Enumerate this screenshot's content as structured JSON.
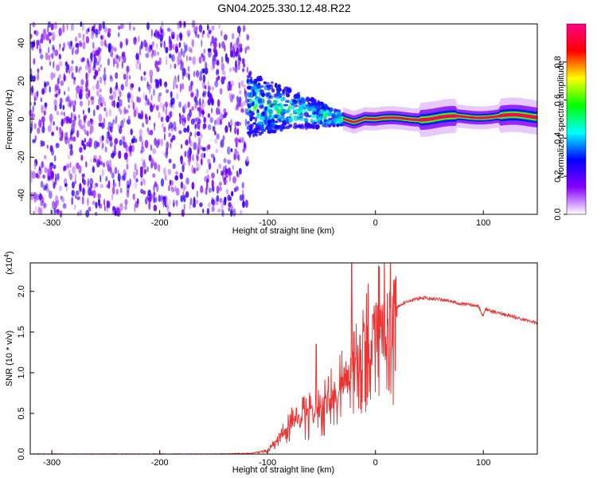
{
  "title": "GN04.2025.330.12.48.R22",
  "chart_data": [
    {
      "type": "heatmap",
      "xlabel": "Height of straight line (km)",
      "ylabel": "Frequency (Hz)",
      "xlim": [
        -320,
        150
      ],
      "ylim": [
        -50,
        50
      ],
      "xticks": [
        "-300",
        "-200",
        "-100",
        "0",
        "100"
      ],
      "xtick_values": [
        -300,
        -200,
        -100,
        0,
        100
      ],
      "yticks": [
        "-40",
        "-20",
        "0",
        "20",
        "40"
      ],
      "ytick_values": [
        -40,
        -20,
        0,
        20,
        40
      ],
      "colorbar": {
        "label": "Normalized spectral amplitude",
        "range": [
          0,
          1
        ],
        "ticks": [
          "0.0",
          "0.2",
          "0.4",
          "0.6",
          "0.8"
        ],
        "tick_values": [
          0,
          0.2,
          0.4,
          0.6,
          0.8
        ],
        "colors": [
          "#ffffff",
          "#8800ff",
          "#0000ff",
          "#00ffff",
          "#00ff00",
          "#ffff00",
          "#ff0000",
          "#ff0088"
        ]
      },
      "regions": [
        {
          "x_range": [
            -320,
            -118
          ],
          "freq_range": [
            -50,
            50
          ],
          "amplitude": 0.15,
          "pattern": "noise"
        },
        {
          "x_range": [
            -118,
            -30
          ],
          "freq_range": [
            -12,
            14
          ],
          "amplitude": 0.35,
          "pattern": "scattered"
        },
        {
          "x_range": [
            -30,
            150
          ],
          "freq_range": [
            -1,
            2
          ],
          "amplitude": 0.9,
          "pattern": "line"
        }
      ],
      "center_line": [
        {
          "x": -118,
          "f": 8
        },
        {
          "x": -100,
          "f": 6
        },
        {
          "x": -80,
          "f": 5
        },
        {
          "x": -60,
          "f": 3
        },
        {
          "x": -40,
          "f": 1
        },
        {
          "x": -20,
          "f": -1
        },
        {
          "x": -10,
          "f": 1
        },
        {
          "x": 0,
          "f": 0
        },
        {
          "x": 20,
          "f": 0
        },
        {
          "x": 50,
          "f": 0.5
        },
        {
          "x": 80,
          "f": 1
        },
        {
          "x": 100,
          "f": 1.5
        },
        {
          "x": 150,
          "f": 1.5
        }
      ]
    },
    {
      "type": "line",
      "xlabel": "Height of straight line (km)",
      "ylabel": "SNR (10 * v/v)",
      "y_multiplier": "(x10",
      "y_multiplier_exp": "4",
      "xlim": [
        -320,
        150
      ],
      "ylim": [
        0,
        2.35
      ],
      "xticks": [
        "-300",
        "-200",
        "-100",
        "0",
        "100"
      ],
      "xtick_values": [
        -300,
        -200,
        -100,
        0,
        100
      ],
      "yticks": [
        "0.0",
        "0.5",
        "1.0",
        "1.5",
        "2.0"
      ],
      "ytick_values": [
        0,
        0.5,
        1.0,
        1.5,
        2.0
      ],
      "series": [
        {
          "color": "#ee3333",
          "x": [
            -320,
            -150,
            -115,
            -100,
            -90,
            -80,
            -70,
            -60,
            -50,
            -40,
            -30,
            -22,
            -15,
            -5,
            5,
            15,
            25,
            35,
            45,
            60,
            80,
            95,
            100,
            102,
            110,
            130,
            150
          ],
          "y": [
            0.0,
            0.0,
            0.01,
            0.05,
            0.2,
            0.35,
            0.45,
            0.5,
            0.6,
            0.7,
            0.85,
            1.1,
            1.3,
            1.45,
            1.6,
            1.75,
            1.85,
            1.9,
            1.92,
            1.9,
            1.85,
            1.82,
            1.7,
            1.78,
            1.75,
            1.68,
            1.61
          ],
          "spikes": [
            {
              "x": -22,
              "y": 2.35
            },
            {
              "x": -55,
              "y": 1.35
            },
            {
              "x": -20,
              "y": 1.5
            }
          ]
        }
      ]
    }
  ]
}
